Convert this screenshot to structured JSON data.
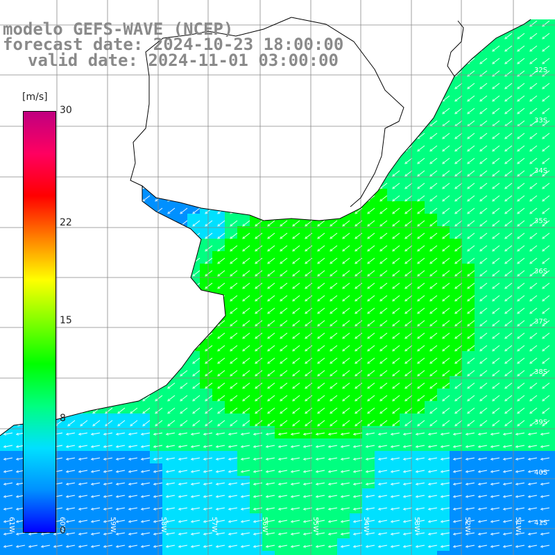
{
  "header": {
    "model": "modelo GEFS-WAVE (NCEP)",
    "forecast_date": "forecast date: 2024-10-23 18:00:00",
    "valid_date": "valid date: 2024-11-01 03:00:00"
  },
  "colorbar": {
    "unit": "[m/s]",
    "ticks": [
      "30",
      "22",
      "15",
      "8",
      "0"
    ],
    "tick_values": [
      30,
      22,
      15,
      8,
      0
    ],
    "colors": [
      "#0000ff",
      "#0090ff",
      "#00e0ff",
      "#00ff80",
      "#00ff00",
      "#80ff00",
      "#ffff00",
      "#ff8000",
      "#ff0000",
      "#ff0060",
      "#c00080"
    ]
  },
  "axis_labels": {
    "lat": [
      "32S",
      "33S",
      "34S",
      "35S",
      "36S",
      "37S",
      "38S",
      "39S",
      "40S",
      "41S"
    ],
    "lon": [
      "61W",
      "60W",
      "59W",
      "58W",
      "57W",
      "56W",
      "55W",
      "54W",
      "53W",
      "52W",
      "51W"
    ]
  },
  "wind_field": {
    "direction": "from northeast (arrows pointing southwest)",
    "typical_speed_ms": 10,
    "max_speed_ms": 13,
    "coastal_min_speed_ms": 4
  }
}
